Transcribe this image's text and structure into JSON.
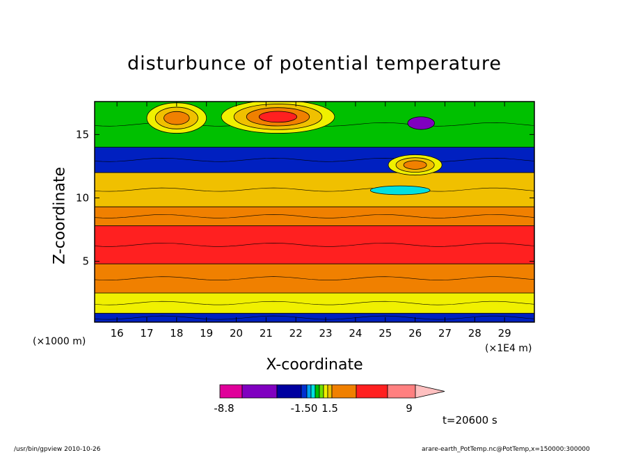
{
  "chart_data": {
    "type": "heatmap",
    "title": "disturbunce of potential temperature",
    "xlabel": "X-coordinate",
    "ylabel": "Z-coordinate",
    "x_unit_left": "(×1000 m)",
    "x_unit_right": "(×1E4 m)",
    "x_ticks": [
      "16",
      "17",
      "18",
      "19",
      "20",
      "21",
      "22",
      "23",
      "24",
      "25",
      "26",
      "27",
      "28",
      "29"
    ],
    "x_tick_values": [
      16,
      17,
      18,
      19,
      20,
      21,
      22,
      23,
      24,
      25,
      26,
      27,
      28,
      29
    ],
    "xlim": [
      15.25,
      30
    ],
    "y_ticks": [
      "5",
      "10",
      "15"
    ],
    "y_tick_values": [
      5,
      10,
      15
    ],
    "ylim": [
      0.2,
      17.6
    ],
    "colorbar": {
      "labels": [
        "-8.8",
        "-1.50",
        "1.5",
        "9"
      ],
      "label_values": [
        -8.8,
        -1.5,
        1.5,
        9
      ],
      "colors": [
        "#e0009a",
        "#8000c0",
        "#0000a0",
        "#0030d0",
        "#00a0f0",
        "#00e0e0",
        "#00c000",
        "#70e000",
        "#f0f000",
        "#f0c000",
        "#f08000",
        "#ff2020",
        "#ff8080",
        "#ffc0c0"
      ]
    },
    "bands": [
      {
        "z": [
          0.2,
          0.9
        ],
        "color": "#0020c0"
      },
      {
        "z": [
          0.9,
          2.5
        ],
        "color": "#f0f000"
      },
      {
        "z": [
          2.5,
          4.8
        ],
        "color": "#f08000"
      },
      {
        "z": [
          4.8,
          7.8
        ],
        "color": "#ff2020"
      },
      {
        "z": [
          7.8,
          9.3
        ],
        "color": "#f08000"
      },
      {
        "z": [
          9.3,
          12.0
        ],
        "color": "#f0c000"
      },
      {
        "z": [
          12.0,
          14.0
        ],
        "color": "#0020c0"
      },
      {
        "z": [
          14.0,
          17.6
        ],
        "color": "#00c000"
      }
    ],
    "features": [
      {
        "x": 18.0,
        "z": 16.3,
        "rx": 1.0,
        "rz": 1.2,
        "colors": [
          "#f0f000",
          "#f0c000",
          "#f08000"
        ],
        "note": "warm anomaly"
      },
      {
        "x": 21.4,
        "z": 16.4,
        "rx": 1.9,
        "rz": 1.3,
        "colors": [
          "#f0f000",
          "#f0c000",
          "#f08000",
          "#ff2020"
        ],
        "note": "warm anomaly"
      },
      {
        "x": 26.0,
        "z": 12.6,
        "rx": 0.9,
        "rz": 0.8,
        "colors": [
          "#f0f000",
          "#f0c000",
          "#f08000"
        ],
        "note": "warm anomaly"
      },
      {
        "x": 26.2,
        "z": 15.9,
        "rx": 0.45,
        "rz": 0.5,
        "colors": [
          "#8000c0"
        ],
        "note": "cold core"
      },
      {
        "x": 25.5,
        "z": 10.6,
        "rx": 1.0,
        "rz": 0.35,
        "colors": [
          "#00e0e0"
        ],
        "note": "cold pocket"
      }
    ],
    "time_label": "t=20600 s"
  },
  "footer": {
    "left": "/usr/bin/gpview   2010-10-26",
    "right": "arare-earth_PotTemp.nc@PotTemp,x=150000:300000"
  }
}
